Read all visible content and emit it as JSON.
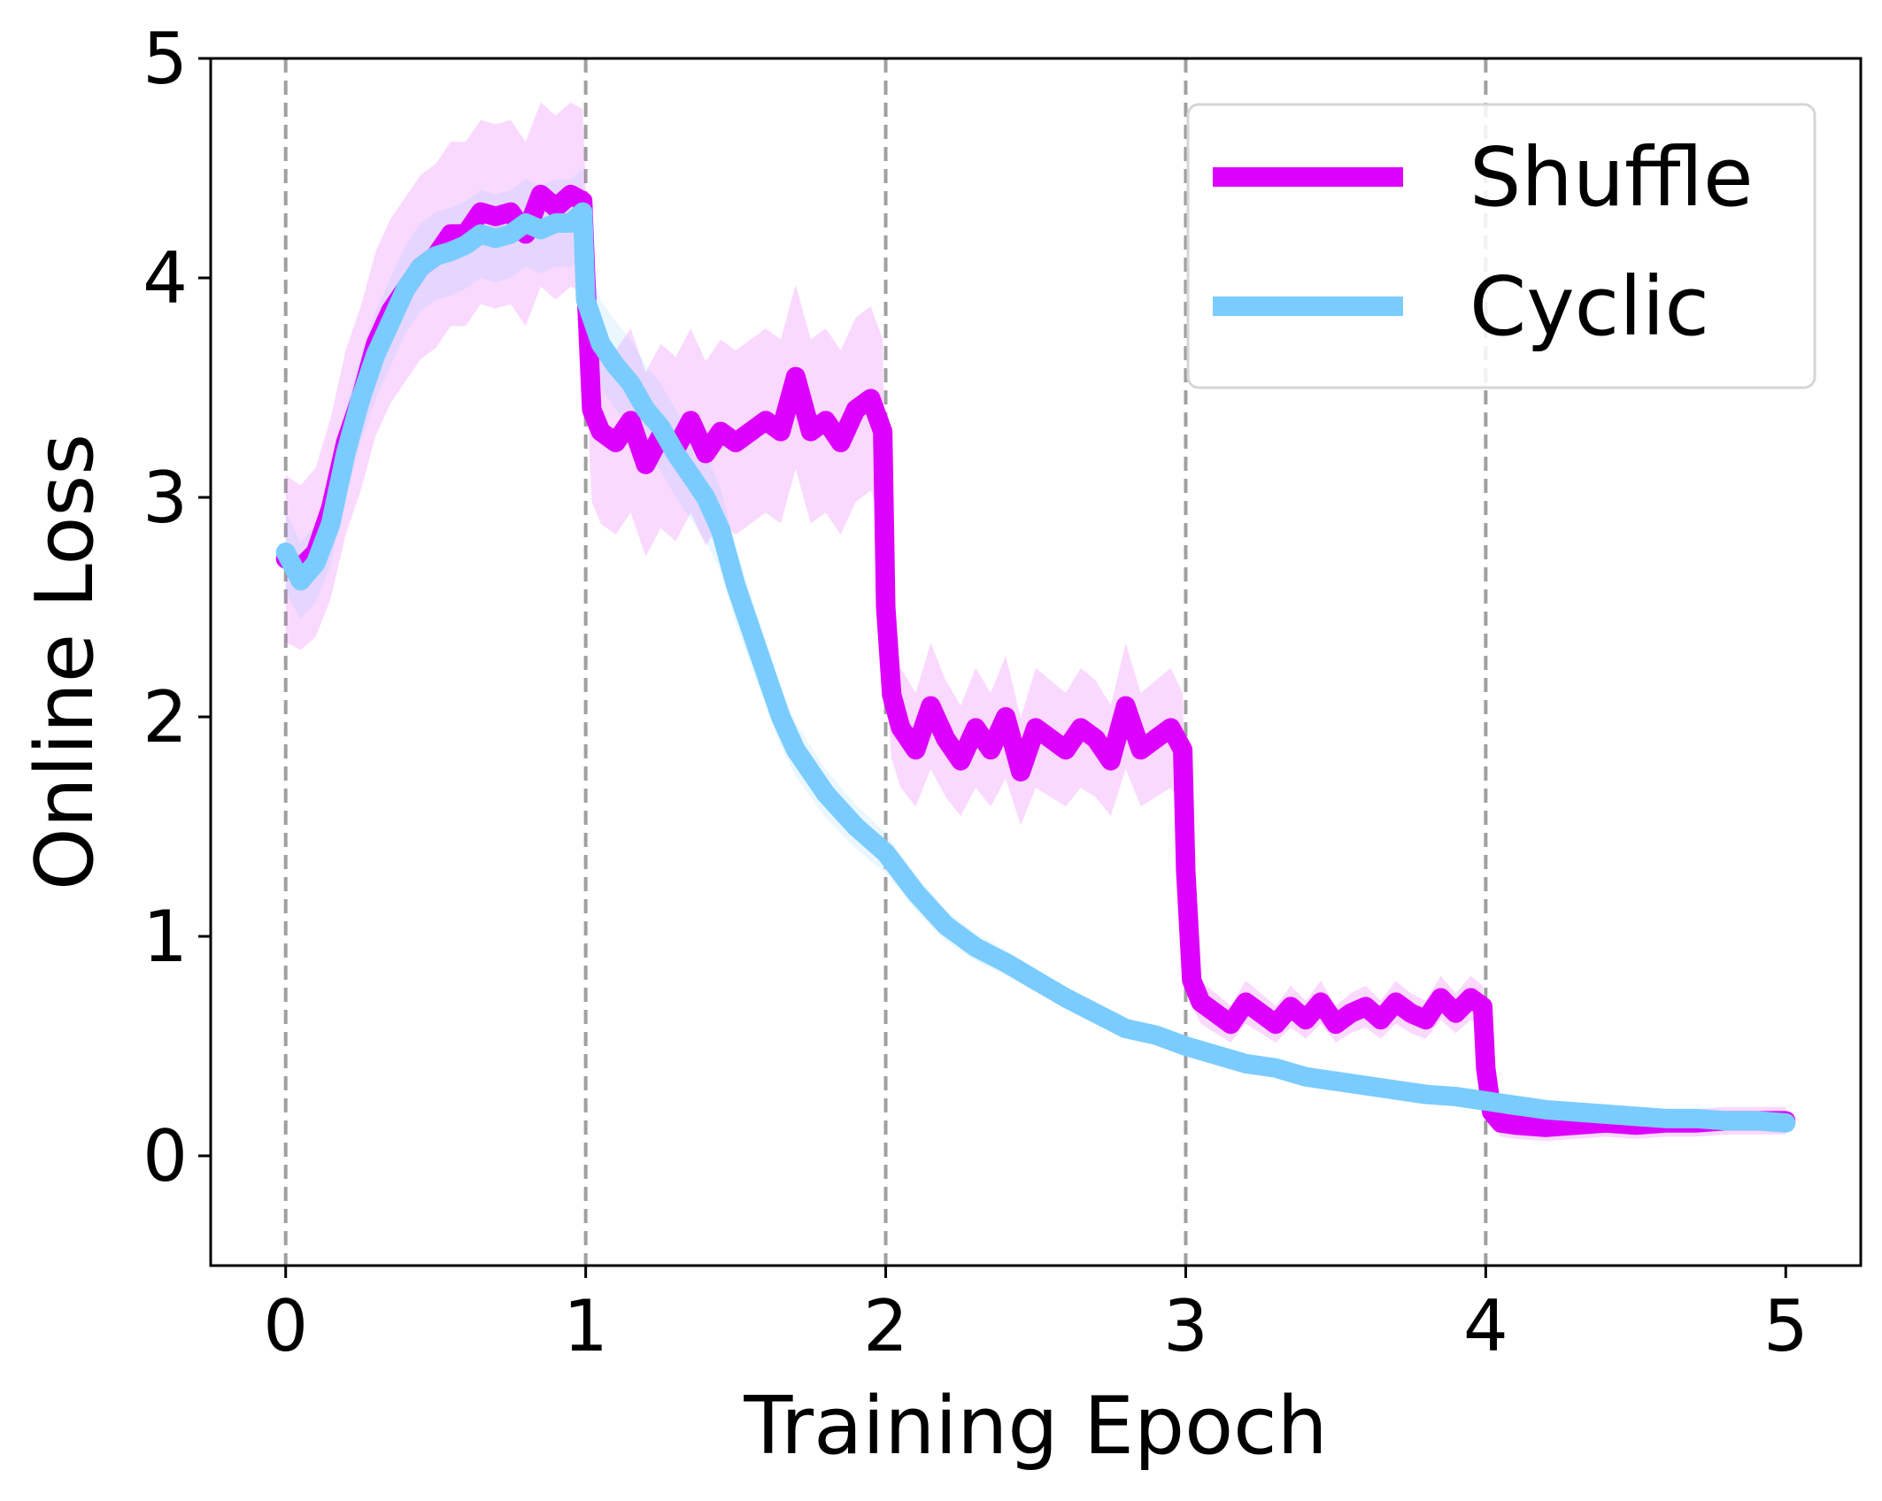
{
  "chart_data": {
    "type": "line",
    "xlabel": "Training Epoch",
    "ylabel": "Online Loss",
    "xlim": [
      -0.25,
      5.25
    ],
    "ylim": [
      -0.5,
      5
    ],
    "xticks": [
      0,
      1,
      2,
      3,
      4,
      5
    ],
    "yticks": [
      0,
      1,
      2,
      3,
      4,
      5
    ],
    "epoch_lines": [
      0,
      1,
      2,
      3,
      4
    ],
    "legend": {
      "placement": "upper right"
    },
    "colors": {
      "shuffle": "#dd00ff",
      "cyclic": "#7accff",
      "epoch_line": "#a0a0a0"
    },
    "series": [
      {
        "name": "Shuffle",
        "key": "shuffle",
        "x": [
          0,
          0.05,
          0.1,
          0.15,
          0.2,
          0.25,
          0.3,
          0.35,
          0.4,
          0.45,
          0.5,
          0.55,
          0.6,
          0.65,
          0.7,
          0.75,
          0.8,
          0.85,
          0.9,
          0.95,
          0.99,
          1.0,
          1.02,
          1.05,
          1.1,
          1.15,
          1.2,
          1.25,
          1.3,
          1.35,
          1.4,
          1.45,
          1.5,
          1.55,
          1.6,
          1.65,
          1.7,
          1.75,
          1.8,
          1.85,
          1.9,
          1.95,
          1.99,
          2.0,
          2.02,
          2.05,
          2.1,
          2.15,
          2.2,
          2.25,
          2.3,
          2.35,
          2.4,
          2.45,
          2.5,
          2.55,
          2.6,
          2.65,
          2.7,
          2.75,
          2.8,
          2.85,
          2.9,
          2.95,
          2.99,
          3.0,
          3.02,
          3.05,
          3.1,
          3.15,
          3.2,
          3.25,
          3.3,
          3.35,
          3.4,
          3.45,
          3.5,
          3.55,
          3.6,
          3.65,
          3.7,
          3.75,
          3.8,
          3.85,
          3.9,
          3.95,
          3.99,
          4.0,
          4.02,
          4.05,
          4.1,
          4.2,
          4.3,
          4.4,
          4.5,
          4.6,
          4.7,
          4.8,
          4.9,
          5.0
        ],
        "y": [
          2.72,
          2.68,
          2.75,
          2.95,
          3.25,
          3.45,
          3.7,
          3.85,
          3.95,
          4.05,
          4.1,
          4.2,
          4.2,
          4.3,
          4.28,
          4.3,
          4.2,
          4.38,
          4.32,
          4.38,
          4.35,
          4.0,
          3.4,
          3.3,
          3.25,
          3.35,
          3.15,
          3.28,
          3.22,
          3.35,
          3.2,
          3.3,
          3.25,
          3.3,
          3.35,
          3.3,
          3.55,
          3.3,
          3.35,
          3.25,
          3.4,
          3.45,
          3.3,
          2.5,
          2.1,
          1.95,
          1.85,
          2.05,
          1.9,
          1.8,
          1.95,
          1.85,
          2.0,
          1.75,
          1.95,
          1.9,
          1.85,
          1.95,
          1.9,
          1.8,
          2.05,
          1.85,
          1.9,
          1.95,
          1.85,
          1.3,
          0.8,
          0.7,
          0.65,
          0.6,
          0.7,
          0.65,
          0.6,
          0.68,
          0.62,
          0.7,
          0.6,
          0.65,
          0.68,
          0.62,
          0.7,
          0.65,
          0.62,
          0.72,
          0.65,
          0.72,
          0.68,
          0.4,
          0.2,
          0.15,
          0.14,
          0.13,
          0.14,
          0.15,
          0.14,
          0.15,
          0.15,
          0.16,
          0.16,
          0.16
        ]
      },
      {
        "name": "Cyclic",
        "key": "cyclic",
        "x": [
          0,
          0.05,
          0.1,
          0.15,
          0.2,
          0.25,
          0.3,
          0.35,
          0.4,
          0.45,
          0.5,
          0.55,
          0.6,
          0.65,
          0.7,
          0.75,
          0.8,
          0.85,
          0.9,
          0.95,
          0.99,
          1.0,
          1.05,
          1.1,
          1.15,
          1.2,
          1.25,
          1.3,
          1.35,
          1.4,
          1.45,
          1.5,
          1.55,
          1.6,
          1.65,
          1.7,
          1.75,
          1.8,
          1.9,
          2.0,
          2.1,
          2.2,
          2.3,
          2.4,
          2.5,
          2.6,
          2.7,
          2.8,
          2.9,
          3.0,
          3.1,
          3.2,
          3.3,
          3.4,
          3.5,
          3.6,
          3.7,
          3.8,
          3.9,
          4.0,
          4.1,
          4.2,
          4.3,
          4.4,
          4.5,
          4.6,
          4.7,
          4.8,
          4.9,
          5.0
        ],
        "y": [
          2.75,
          2.62,
          2.7,
          2.88,
          3.2,
          3.45,
          3.65,
          3.8,
          3.95,
          4.05,
          4.1,
          4.12,
          4.15,
          4.2,
          4.18,
          4.2,
          4.25,
          4.22,
          4.25,
          4.25,
          4.3,
          3.9,
          3.7,
          3.6,
          3.52,
          3.4,
          3.32,
          3.2,
          3.1,
          3.0,
          2.85,
          2.6,
          2.4,
          2.2,
          2.0,
          1.85,
          1.75,
          1.65,
          1.5,
          1.38,
          1.2,
          1.05,
          0.95,
          0.88,
          0.8,
          0.72,
          0.65,
          0.58,
          0.55,
          0.5,
          0.46,
          0.42,
          0.4,
          0.36,
          0.34,
          0.32,
          0.3,
          0.28,
          0.27,
          0.25,
          0.23,
          0.21,
          0.2,
          0.19,
          0.18,
          0.17,
          0.17,
          0.16,
          0.16,
          0.15
        ]
      }
    ]
  }
}
